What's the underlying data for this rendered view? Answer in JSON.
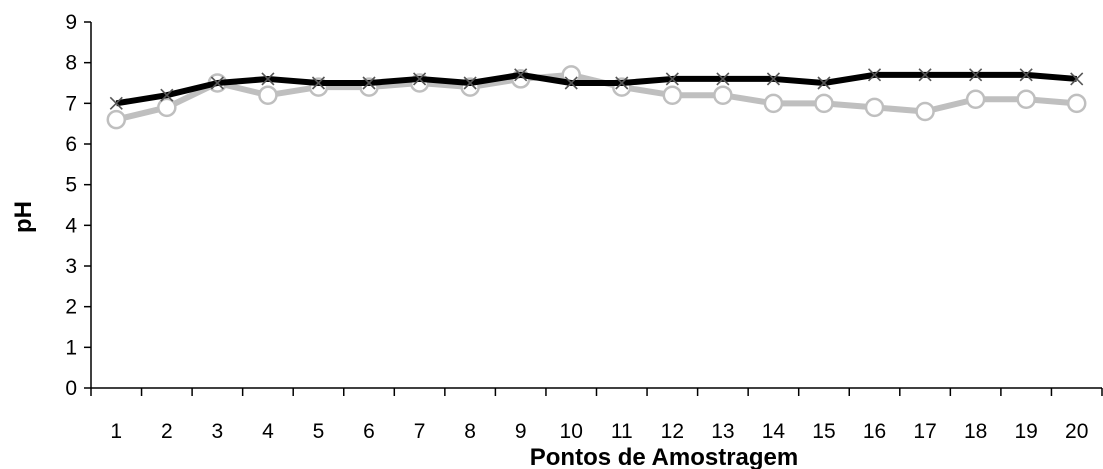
{
  "chart_data": {
    "type": "line",
    "title": "",
    "xlabel": "Pontos de Amostragem",
    "ylabel": "pH",
    "ylim": [
      0,
      9
    ],
    "y_ticks": [
      0,
      1,
      2,
      3,
      4,
      5,
      6,
      7,
      8,
      9
    ],
    "grid": false,
    "legend": "none",
    "categories": [
      "1",
      "2",
      "3",
      "4",
      "5",
      "6",
      "7",
      "8",
      "9",
      "10",
      "11",
      "12",
      "13",
      "14",
      "15",
      "16",
      "17",
      "18",
      "19",
      "20"
    ],
    "series": [
      {
        "marker": "x",
        "color": "#000000",
        "values": [
          7.0,
          7.2,
          7.5,
          7.6,
          7.5,
          7.5,
          7.6,
          7.5,
          7.7,
          7.5,
          7.5,
          7.6,
          7.6,
          7.6,
          7.5,
          7.7,
          7.7,
          7.7,
          7.7,
          7.6
        ]
      },
      {
        "marker": "circle",
        "color": "#bfbfbf",
        "values": [
          6.6,
          6.9,
          7.5,
          7.2,
          7.4,
          7.4,
          7.5,
          7.4,
          7.6,
          7.7,
          7.4,
          7.2,
          7.2,
          7.0,
          7.0,
          6.9,
          6.8,
          7.1,
          7.1,
          7.0
        ]
      }
    ]
  }
}
